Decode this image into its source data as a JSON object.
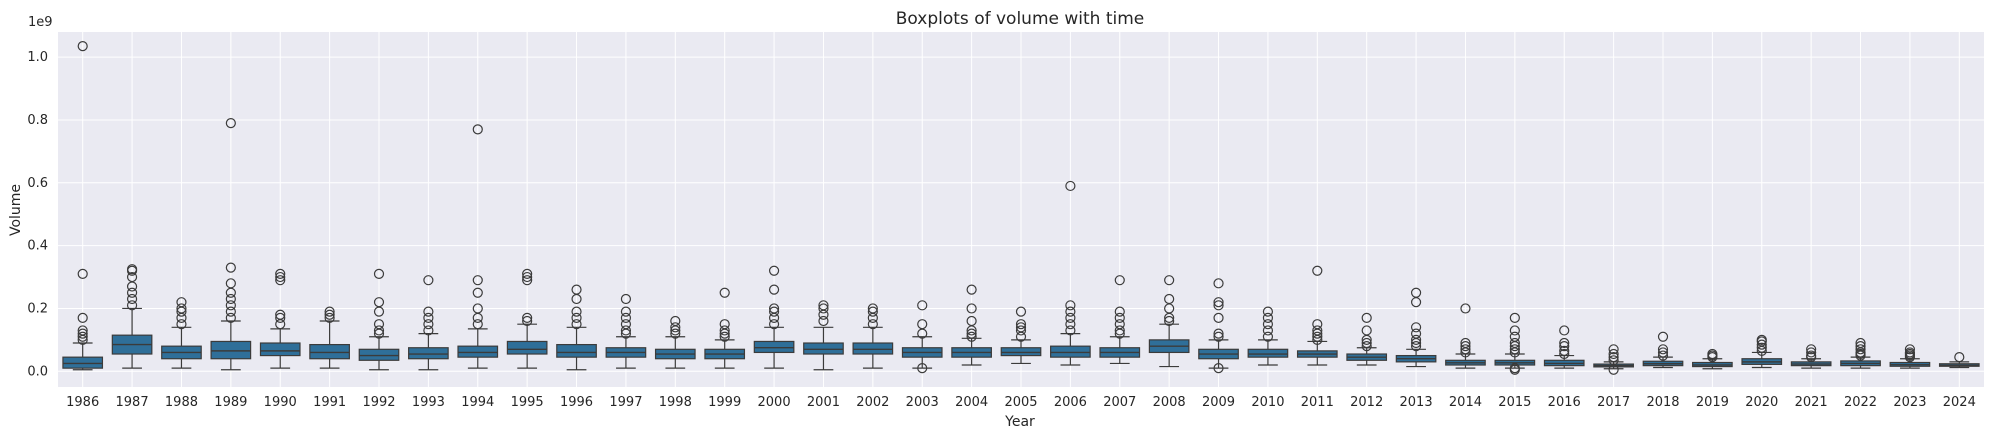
{
  "chart_data": {
    "type": "boxplot",
    "title": "Boxplots of volume with time",
    "xlabel": "Year",
    "ylabel": "Volume",
    "y_scale_label": "1e9",
    "ylim": [
      -0.05,
      1.08
    ],
    "yticks": [
      "0.0",
      "0.2",
      "0.4",
      "0.6",
      "0.8",
      "1.0"
    ],
    "ytick_values": [
      0.0,
      0.2,
      0.4,
      0.6,
      0.8,
      1.0
    ],
    "grid": true,
    "colors": {
      "box": "#2f6f99",
      "edge": "#3b3b3b",
      "background": "#eaeaf2",
      "grid": "#ffffff"
    },
    "categories": [
      "1986",
      "1987",
      "1988",
      "1989",
      "1990",
      "1991",
      "1992",
      "1993",
      "1994",
      "1995",
      "1996",
      "1997",
      "1998",
      "1999",
      "2000",
      "2001",
      "2002",
      "2003",
      "2004",
      "2005",
      "2006",
      "2007",
      "2008",
      "2009",
      "2010",
      "2011",
      "2012",
      "2013",
      "2014",
      "2015",
      "2016",
      "2017",
      "2018",
      "2019",
      "2020",
      "2021",
      "2022",
      "2023",
      "2024"
    ],
    "boxes": [
      {
        "min": 0.005,
        "q1": 0.01,
        "median": 0.025,
        "q3": 0.045,
        "max": 0.09,
        "outliers": [
          0.1,
          0.11,
          0.12,
          0.13,
          0.17,
          0.31,
          1.035
        ]
      },
      {
        "min": 0.01,
        "q1": 0.055,
        "median": 0.085,
        "q3": 0.115,
        "max": 0.2,
        "outliers": [
          0.21,
          0.23,
          0.25,
          0.27,
          0.3,
          0.32,
          0.325
        ]
      },
      {
        "min": 0.01,
        "q1": 0.04,
        "median": 0.06,
        "q3": 0.08,
        "max": 0.14,
        "outliers": [
          0.15,
          0.17,
          0.19,
          0.2,
          0.22
        ]
      },
      {
        "min": 0.005,
        "q1": 0.04,
        "median": 0.065,
        "q3": 0.095,
        "max": 0.16,
        "outliers": [
          0.17,
          0.19,
          0.21,
          0.23,
          0.25,
          0.28,
          0.33,
          0.79
        ]
      },
      {
        "min": 0.01,
        "q1": 0.05,
        "median": 0.065,
        "q3": 0.09,
        "max": 0.135,
        "outliers": [
          0.15,
          0.17,
          0.18,
          0.29,
          0.3,
          0.31
        ]
      },
      {
        "min": 0.01,
        "q1": 0.04,
        "median": 0.06,
        "q3": 0.085,
        "max": 0.16,
        "outliers": [
          0.17,
          0.18,
          0.19
        ]
      },
      {
        "min": 0.005,
        "q1": 0.035,
        "median": 0.05,
        "q3": 0.07,
        "max": 0.11,
        "outliers": [
          0.12,
          0.13,
          0.15,
          0.19,
          0.22,
          0.31
        ]
      },
      {
        "min": 0.005,
        "q1": 0.04,
        "median": 0.055,
        "q3": 0.075,
        "max": 0.12,
        "outliers": [
          0.13,
          0.15,
          0.17,
          0.19,
          0.29
        ]
      },
      {
        "min": 0.01,
        "q1": 0.045,
        "median": 0.06,
        "q3": 0.08,
        "max": 0.135,
        "outliers": [
          0.15,
          0.17,
          0.2,
          0.25,
          0.29,
          0.77
        ]
      },
      {
        "min": 0.01,
        "q1": 0.055,
        "median": 0.07,
        "q3": 0.095,
        "max": 0.15,
        "outliers": [
          0.16,
          0.17,
          0.29,
          0.3,
          0.31
        ]
      },
      {
        "min": 0.005,
        "q1": 0.045,
        "median": 0.06,
        "q3": 0.085,
        "max": 0.14,
        "outliers": [
          0.15,
          0.17,
          0.19,
          0.23,
          0.26
        ]
      },
      {
        "min": 0.01,
        "q1": 0.045,
        "median": 0.06,
        "q3": 0.075,
        "max": 0.11,
        "outliers": [
          0.12,
          0.13,
          0.15,
          0.17,
          0.19,
          0.23
        ]
      },
      {
        "min": 0.01,
        "q1": 0.04,
        "median": 0.055,
        "q3": 0.07,
        "max": 0.11,
        "outliers": [
          0.12,
          0.13,
          0.14,
          0.16
        ]
      },
      {
        "min": 0.01,
        "q1": 0.04,
        "median": 0.055,
        "q3": 0.07,
        "max": 0.1,
        "outliers": [
          0.11,
          0.12,
          0.13,
          0.15,
          0.25
        ]
      },
      {
        "min": 0.01,
        "q1": 0.06,
        "median": 0.075,
        "q3": 0.095,
        "max": 0.14,
        "outliers": [
          0.15,
          0.17,
          0.19,
          0.2,
          0.26,
          0.32
        ]
      },
      {
        "min": 0.005,
        "q1": 0.055,
        "median": 0.07,
        "q3": 0.09,
        "max": 0.14,
        "outliers": [
          0.16,
          0.18,
          0.2,
          0.21
        ]
      },
      {
        "min": 0.01,
        "q1": 0.055,
        "median": 0.07,
        "q3": 0.09,
        "max": 0.14,
        "outliers": [
          0.15,
          0.17,
          0.19,
          0.2
        ]
      },
      {
        "min": 0.01,
        "q1": 0.045,
        "median": 0.06,
        "q3": 0.075,
        "max": 0.11,
        "outliers": [
          0.12,
          0.15,
          0.21,
          0.01
        ]
      },
      {
        "min": 0.02,
        "q1": 0.045,
        "median": 0.06,
        "q3": 0.075,
        "max": 0.105,
        "outliers": [
          0.11,
          0.12,
          0.13,
          0.16,
          0.2,
          0.26
        ]
      },
      {
        "min": 0.025,
        "q1": 0.05,
        "median": 0.06,
        "q3": 0.075,
        "max": 0.1,
        "outliers": [
          0.11,
          0.13,
          0.14,
          0.15,
          0.19
        ]
      },
      {
        "min": 0.02,
        "q1": 0.045,
        "median": 0.06,
        "q3": 0.08,
        "max": 0.12,
        "outliers": [
          0.13,
          0.15,
          0.17,
          0.19,
          0.21,
          0.59
        ]
      },
      {
        "min": 0.025,
        "q1": 0.045,
        "median": 0.06,
        "q3": 0.075,
        "max": 0.11,
        "outliers": [
          0.12,
          0.13,
          0.15,
          0.17,
          0.19,
          0.29
        ]
      },
      {
        "min": 0.015,
        "q1": 0.06,
        "median": 0.08,
        "q3": 0.1,
        "max": 0.15,
        "outliers": [
          0.16,
          0.17,
          0.2,
          0.23,
          0.29
        ]
      },
      {
        "min": 0.01,
        "q1": 0.04,
        "median": 0.055,
        "q3": 0.07,
        "max": 0.1,
        "outliers": [
          0.11,
          0.12,
          0.17,
          0.21,
          0.22,
          0.28,
          0.01
        ]
      },
      {
        "min": 0.02,
        "q1": 0.045,
        "median": 0.055,
        "q3": 0.07,
        "max": 0.1,
        "outliers": [
          0.11,
          0.13,
          0.15,
          0.17,
          0.19
        ]
      },
      {
        "min": 0.02,
        "q1": 0.045,
        "median": 0.055,
        "q3": 0.065,
        "max": 0.095,
        "outliers": [
          0.1,
          0.11,
          0.12,
          0.13,
          0.15,
          0.32
        ]
      },
      {
        "min": 0.02,
        "q1": 0.035,
        "median": 0.045,
        "q3": 0.055,
        "max": 0.075,
        "outliers": [
          0.08,
          0.09,
          0.1,
          0.13,
          0.17
        ]
      },
      {
        "min": 0.015,
        "q1": 0.03,
        "median": 0.04,
        "q3": 0.05,
        "max": 0.07,
        "outliers": [
          0.08,
          0.09,
          0.1,
          0.12,
          0.14,
          0.22,
          0.25
        ]
      },
      {
        "min": 0.01,
        "q1": 0.02,
        "median": 0.027,
        "q3": 0.035,
        "max": 0.055,
        "outliers": [
          0.06,
          0.07,
          0.08,
          0.09,
          0.2
        ]
      },
      {
        "min": 0.01,
        "q1": 0.02,
        "median": 0.027,
        "q3": 0.035,
        "max": 0.055,
        "outliers": [
          0.06,
          0.07,
          0.08,
          0.09,
          0.11,
          0.13,
          0.17,
          0.005,
          0.01
        ]
      },
      {
        "min": 0.01,
        "q1": 0.018,
        "median": 0.025,
        "q3": 0.035,
        "max": 0.05,
        "outliers": [
          0.055,
          0.065,
          0.08,
          0.09,
          0.13
        ]
      },
      {
        "min": 0.008,
        "q1": 0.014,
        "median": 0.018,
        "q3": 0.023,
        "max": 0.03,
        "outliers": [
          0.035,
          0.045,
          0.055,
          0.07,
          0.005
        ]
      },
      {
        "min": 0.012,
        "q1": 0.018,
        "median": 0.024,
        "q3": 0.032,
        "max": 0.045,
        "outliers": [
          0.05,
          0.06,
          0.07,
          0.11
        ]
      },
      {
        "min": 0.008,
        "q1": 0.015,
        "median": 0.02,
        "q3": 0.028,
        "max": 0.04,
        "outliers": [
          0.045,
          0.05,
          0.055
        ]
      },
      {
        "min": 0.012,
        "q1": 0.022,
        "median": 0.03,
        "q3": 0.04,
        "max": 0.06,
        "outliers": [
          0.065,
          0.075,
          0.085,
          0.095,
          0.1
        ]
      },
      {
        "min": 0.01,
        "q1": 0.018,
        "median": 0.023,
        "q3": 0.03,
        "max": 0.04,
        "outliers": [
          0.045,
          0.05,
          0.06,
          0.07
        ]
      },
      {
        "min": 0.01,
        "q1": 0.018,
        "median": 0.025,
        "q3": 0.033,
        "max": 0.045,
        "outliers": [
          0.05,
          0.055,
          0.06,
          0.07,
          0.08,
          0.09
        ]
      },
      {
        "min": 0.01,
        "q1": 0.016,
        "median": 0.021,
        "q3": 0.028,
        "max": 0.04,
        "outliers": [
          0.045,
          0.05,
          0.055,
          0.06,
          0.07
        ]
      },
      {
        "min": 0.012,
        "q1": 0.016,
        "median": 0.019,
        "q3": 0.024,
        "max": 0.03,
        "outliers": [
          0.045
        ]
      }
    ]
  }
}
